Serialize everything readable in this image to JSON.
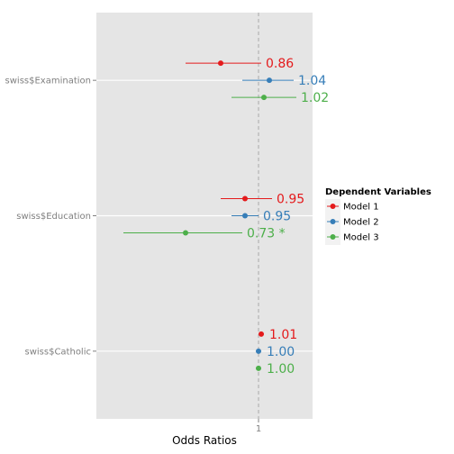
{
  "chart_data": {
    "type": "coefficient-plot",
    "xlabel": "Odds Ratios",
    "ylabel": "",
    "reference_line": 1,
    "xlim": [
      0.4,
      1.2
    ],
    "x_ticks": [
      {
        "value": 1,
        "label": "1"
      }
    ],
    "grid": true,
    "categories": [
      "swiss$Catholic",
      "swiss$Education",
      "swiss$Examination"
    ],
    "legend": {
      "title": "Dependent Variables",
      "position": "right",
      "entries": [
        "Model 1",
        "Model 2",
        "Model 3"
      ]
    },
    "series": [
      {
        "name": "Model 1",
        "color": "#e41a1c",
        "points": [
          {
            "category": "swiss$Examination",
            "estimate": 0.86,
            "lower": 0.73,
            "upper": 1.01,
            "label": "0.86"
          },
          {
            "category": "swiss$Education",
            "estimate": 0.95,
            "lower": 0.86,
            "upper": 1.05,
            "label": "0.95"
          },
          {
            "category": "swiss$Catholic",
            "estimate": 1.01,
            "lower": 1.0,
            "upper": 1.02,
            "label": "1.01"
          }
        ]
      },
      {
        "name": "Model 2",
        "color": "#377eb8",
        "points": [
          {
            "category": "swiss$Examination",
            "estimate": 1.04,
            "lower": 0.94,
            "upper": 1.13,
            "label": "1.04"
          },
          {
            "category": "swiss$Education",
            "estimate": 0.95,
            "lower": 0.9,
            "upper": 1.0,
            "label": "0.95"
          },
          {
            "category": "swiss$Catholic",
            "estimate": 1.0,
            "lower": 0.99,
            "upper": 1.01,
            "label": "1.00"
          }
        ]
      },
      {
        "name": "Model 3",
        "color": "#4daf4a",
        "points": [
          {
            "category": "swiss$Examination",
            "estimate": 1.02,
            "lower": 0.9,
            "upper": 1.14,
            "label": "1.02"
          },
          {
            "category": "swiss$Education",
            "estimate": 0.73,
            "lower": 0.5,
            "upper": 0.94,
            "label": "0.73 *"
          },
          {
            "category": "swiss$Catholic",
            "estimate": 1.0,
            "lower": 0.99,
            "upper": 1.01,
            "label": "1.00"
          }
        ]
      }
    ]
  }
}
